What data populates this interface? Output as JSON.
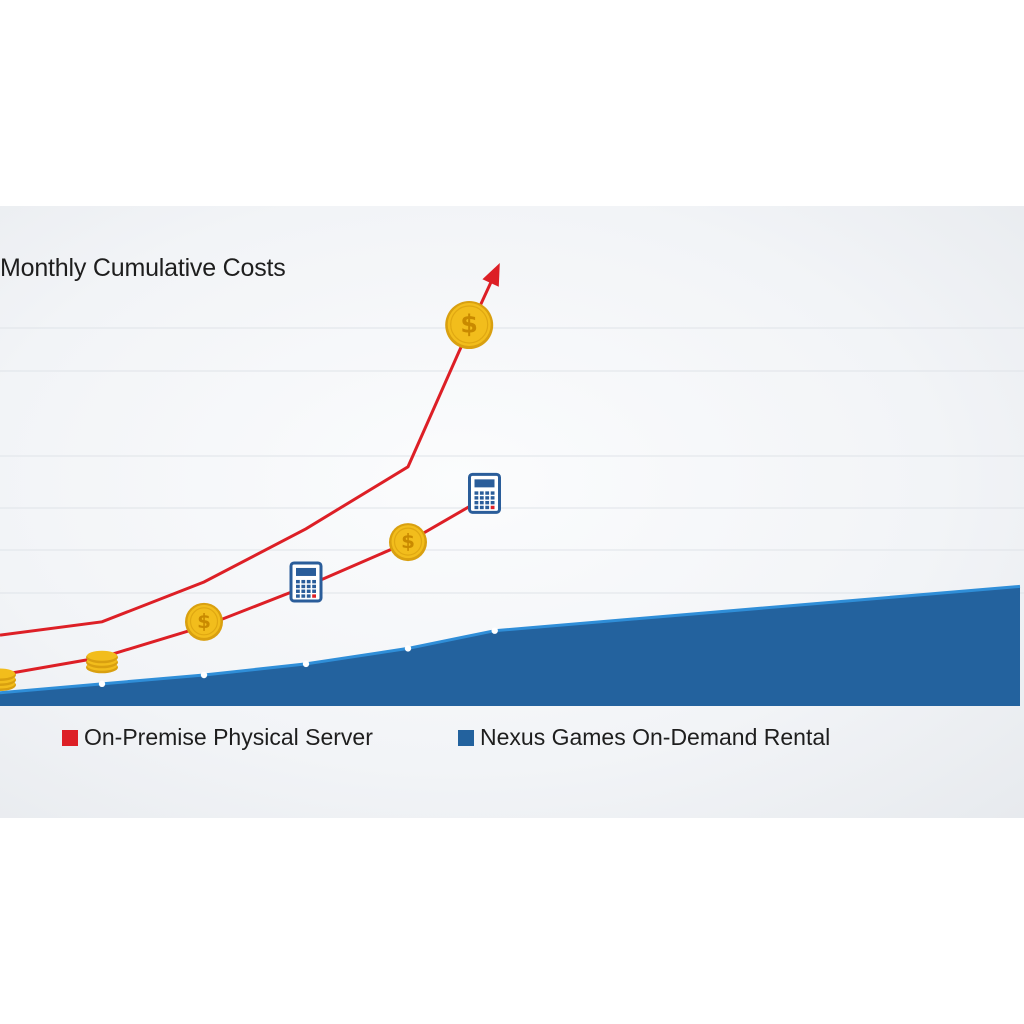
{
  "colors": {
    "on_premise": "#dd1f26",
    "nexus": "#23629e",
    "nexus_edge": "#2f8ed8",
    "grid": "#dfe3e8",
    "coin": "#f2bd1c",
    "calculator": "#2a5d9a"
  },
  "chart_data": {
    "type": "line",
    "title": "Monthly Cumulative Costs",
    "xlabel": "",
    "ylabel": "",
    "x": [
      0,
      1,
      2,
      3,
      4,
      5,
      6,
      7,
      8,
      9,
      10
    ],
    "ylim": [
      0,
      100
    ],
    "grid": true,
    "legend_position": "bottom",
    "series": [
      {
        "key": "on_premise",
        "name": "On-Premise Physical Server",
        "style": "line-with-arrow",
        "x": [
          0,
          1,
          2,
          3,
          4,
          4.5,
          4.9
        ],
        "values": [
          16,
          19,
          28,
          40,
          54,
          80,
          100
        ]
      },
      {
        "key": "on_premise_secondary",
        "style": "line",
        "x": [
          0,
          1,
          2,
          3,
          4,
          4.75
        ],
        "values": [
          7,
          11,
          18,
          27,
          37,
          47
        ]
      },
      {
        "key": "nexus",
        "name": "Nexus Games On-Demand Rental",
        "style": "area",
        "x": [
          0,
          1,
          2,
          3,
          4,
          4.85,
          10
        ],
        "values": [
          3,
          5,
          7,
          9.5,
          13,
          17,
          27
        ]
      }
    ],
    "icons": [
      {
        "kind": "coin-stack-icon",
        "x": 0,
        "y": 7
      },
      {
        "kind": "coin-stack-icon",
        "x": 1,
        "y": 11
      },
      {
        "kind": "dollar-coin-icon",
        "x": 2,
        "y": 19
      },
      {
        "kind": "calculator-icon",
        "x": 3,
        "y": 28
      },
      {
        "kind": "dollar-coin-icon",
        "x": 4,
        "y": 37
      },
      {
        "kind": "calculator-icon",
        "x": 4.75,
        "y": 48
      },
      {
        "kind": "dollar-coin-icon",
        "x": 4.6,
        "y": 86
      }
    ]
  }
}
